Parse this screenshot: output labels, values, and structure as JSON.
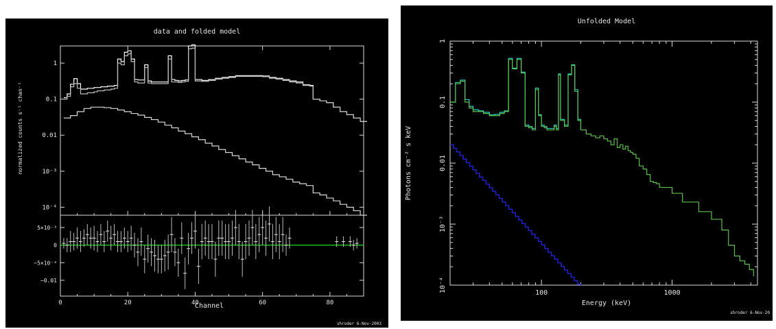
{
  "chart_data": [
    {
      "type": "line",
      "title": "data and folded model",
      "xlabel": "Channel",
      "ylabel": "normalized counts s⁻¹ chan⁻¹",
      "residual_ylabel": "",
      "x_ticks": [
        "0",
        "20",
        "40",
        "60",
        "80"
      ],
      "y_ticks": [
        "1",
        "0.1",
        "0.01",
        "10⁻³",
        "10⁻⁴"
      ],
      "residual_ticks": [
        "5×10⁻³",
        "0",
        "−5×10⁻³",
        "−0.01"
      ],
      "xlim": [
        0,
        90
      ],
      "ylim": [
        6e-05,
        3
      ],
      "y_scale": "log",
      "residual_ylim": [
        -0.0145,
        0.0085
      ],
      "footer": "shroder   6-Nov-2003",
      "colors": {
        "data": "#ffffff",
        "model": "#bdbdbd",
        "component": "#d8d8d8",
        "zero_line": "#18c018"
      },
      "series": [
        {
          "x": [
            1,
            2,
            3,
            4,
            5,
            6,
            7,
            8,
            9,
            10,
            11,
            12,
            13,
            14,
            15,
            16,
            17,
            18,
            19,
            20,
            21,
            22,
            23,
            24,
            25,
            26,
            27,
            28,
            29,
            30,
            31,
            32,
            33,
            34,
            35,
            36,
            37,
            38,
            39,
            40,
            42,
            44,
            46,
            48,
            50,
            52,
            54,
            56,
            58,
            60,
            62,
            64,
            66,
            68,
            70,
            72,
            74,
            75,
            77,
            79,
            81,
            83,
            85,
            87,
            89
          ],
          "values": [
            0.11,
            0.14,
            0.26,
            0.37,
            0.27,
            0.19,
            0.19,
            0.2,
            0.2,
            0.21,
            0.21,
            0.22,
            0.22,
            0.23,
            0.23,
            0.24,
            1.3,
            1.1,
            2.0,
            2.2,
            1.3,
            0.35,
            0.34,
            0.34,
            0.9,
            0.32,
            0.3,
            0.3,
            0.3,
            0.3,
            0.3,
            1.6,
            0.35,
            0.33,
            0.32,
            0.33,
            0.34,
            3.0,
            3.2,
            0.35,
            0.33,
            0.35,
            0.38,
            0.4,
            0.42,
            0.45,
            0.45,
            0.45,
            0.45,
            0.44,
            0.4,
            0.38,
            0.35,
            0.32,
            0.3,
            0.25,
            0.24,
            0.1,
            0.09,
            0.08,
            0.06,
            0.045,
            0.037,
            0.03,
            0.024
          ]
        },
        {
          "x": [
            1,
            2,
            3,
            4,
            5,
            6,
            7,
            8,
            9,
            10,
            11,
            12,
            13,
            14,
            15,
            16,
            17,
            18,
            19,
            20,
            21,
            22,
            23,
            24,
            25,
            26,
            27,
            28,
            29,
            30,
            31,
            32,
            33,
            34,
            35,
            36,
            37,
            38,
            39,
            40,
            42,
            44,
            46,
            48,
            50,
            52,
            54,
            56,
            58,
            60,
            62,
            64,
            66,
            68,
            70,
            72,
            74,
            75,
            77,
            79,
            81,
            83,
            85,
            87,
            89
          ],
          "values": [
            0.1,
            0.12,
            0.22,
            0.27,
            0.2,
            0.14,
            0.14,
            0.15,
            0.15,
            0.16,
            0.17,
            0.17,
            0.18,
            0.18,
            0.19,
            0.2,
            1.0,
            0.9,
            1.6,
            1.8,
            1.1,
            0.3,
            0.28,
            0.28,
            0.75,
            0.28,
            0.27,
            0.27,
            0.27,
            0.27,
            0.27,
            1.3,
            0.3,
            0.3,
            0.29,
            0.3,
            0.31,
            2.5,
            2.6,
            0.32,
            0.31,
            0.33,
            0.36,
            0.38,
            0.4,
            0.43,
            0.43,
            0.43,
            0.43,
            0.42,
            0.38,
            0.36,
            0.33,
            0.3,
            0.28,
            0.24,
            0.23,
            0.1,
            0.09,
            0.08,
            0.06,
            0.045,
            0.037,
            0.03,
            0.024
          ]
        },
        {
          "x": [
            1,
            3,
            5,
            7,
            9,
            11,
            13,
            15,
            17,
            19,
            21,
            23,
            25,
            27,
            29,
            31,
            33,
            35,
            37,
            39,
            41,
            43,
            45,
            47,
            49,
            51,
            53,
            55,
            57,
            59,
            61,
            63,
            65,
            67,
            69,
            71,
            73,
            75,
            77,
            79,
            81,
            83,
            85,
            87,
            89
          ],
          "values": [
            0.03,
            0.035,
            0.045,
            0.055,
            0.06,
            0.06,
            0.058,
            0.055,
            0.05,
            0.045,
            0.04,
            0.036,
            0.031,
            0.027,
            0.023,
            0.019,
            0.016,
            0.013,
            0.011,
            0.009,
            0.0075,
            0.006,
            0.005,
            0.004,
            0.0033,
            0.0027,
            0.0022,
            0.0018,
            0.0015,
            0.0012,
            0.001,
            0.0008,
            0.0007,
            0.0006,
            0.0005,
            0.00045,
            0.0004,
            0.00025,
            0.00022,
            0.00018,
            0.00015,
            0.00012,
            0.0001,
            8e-05,
            6e-05
          ]
        }
      ],
      "residuals": {
        "x": [
          1,
          2,
          3,
          4,
          5,
          6,
          7,
          8,
          9,
          10,
          11,
          12,
          13,
          14,
          15,
          16,
          17,
          18,
          19,
          20,
          21,
          22,
          23,
          24,
          25,
          26,
          27,
          28,
          29,
          30,
          31,
          32,
          33,
          34,
          35,
          36,
          37,
          38,
          39,
          40,
          41,
          42,
          43,
          44,
          45,
          46,
          47,
          48,
          49,
          50,
          51,
          52,
          53,
          54,
          55,
          56,
          57,
          58,
          59,
          60,
          61,
          62,
          63,
          64,
          65,
          66,
          67,
          68,
          82,
          84,
          86,
          87,
          88
        ],
        "values": [
          0.0005,
          0,
          0.001,
          0.001,
          0.002,
          0.001,
          0.002,
          0.003,
          0.002,
          0.002,
          0.001,
          0.003,
          0.001,
          0.004,
          0.002,
          0.003,
          0.001,
          0.001,
          0.002,
          0.001,
          0.002,
          0,
          -0.002,
          0.001,
          -0.004,
          -0.001,
          -0.002,
          -0.003,
          -0.004,
          -0.004,
          -0.003,
          -0.002,
          0.003,
          -0.002,
          -0.005,
          0.002,
          -0.008,
          -0.001,
          0.002,
          0.004,
          -0.006,
          0.001,
          0.002,
          0.001,
          0.001,
          -0.004,
          0.002,
          0.002,
          0.001,
          0.001,
          0.002,
          0.005,
          0.001,
          -0.004,
          0.001,
          0.002,
          0.005,
          0.001,
          0.003,
          0.005,
          0.002,
          0.006,
          0.001,
          0.003,
          0.001,
          0.003,
          0,
          0.002,
          0.001,
          0.001,
          0.001,
          0,
          0.0005
        ],
        "errors": [
          0.0015,
          0.002,
          0.003,
          0.0025,
          0.003,
          0.003,
          0.0025,
          0.003,
          0.003,
          0.0035,
          0.003,
          0.003,
          0.003,
          0.003,
          0.0035,
          0.003,
          0.003,
          0.003,
          0.003,
          0.003,
          0.0035,
          0.0035,
          0.004,
          0.004,
          0.004,
          0.004,
          0.004,
          0.0045,
          0.004,
          0.004,
          0.0045,
          0.005,
          0.005,
          0.004,
          0.004,
          0.0045,
          0.0045,
          0.0045,
          0.0045,
          0.005,
          0.005,
          0.005,
          0.005,
          0.005,
          0.005,
          0.005,
          0.005,
          0.005,
          0.005,
          0.005,
          0.005,
          0.005,
          0.005,
          0.005,
          0.005,
          0.005,
          0.005,
          0.005,
          0.005,
          0.005,
          0.005,
          0.005,
          0.005,
          0.005,
          0.005,
          0.005,
          0.003,
          0.003,
          0.0015,
          0.0015,
          0.0015,
          0.0015,
          0.0015
        ]
      }
    },
    {
      "type": "line",
      "title": "Unfolded Model",
      "xlabel": "Energy (keV)",
      "ylabel": "Photons cm⁻² s keV",
      "x_ticks": [
        "100",
        "1000"
      ],
      "y_ticks": [
        "1",
        "0.1",
        "0.01",
        "10⁻³",
        "10⁻⁴"
      ],
      "x_scale": "log",
      "y_scale": "log",
      "xlim": [
        20,
        4500
      ],
      "ylim": [
        0.0001,
        1
      ],
      "footer": "shroder   6-Nov-20",
      "colors": {
        "total": "#1fd5c2",
        "component_a": "#5cc04a",
        "component_b": "#2020c8"
      },
      "series": [
        {
          "x": [
            20,
            22,
            24,
            26,
            28,
            30,
            33,
            36,
            40,
            44,
            48,
            52,
            56,
            60,
            65,
            70,
            75,
            80,
            85,
            90,
            95,
            100,
            105,
            110,
            115,
            120,
            125,
            130,
            135,
            140,
            150,
            160,
            170,
            180,
            190,
            200,
            220,
            240,
            260,
            280,
            300,
            320,
            340,
            360,
            380,
            400,
            420,
            440,
            460,
            480,
            500,
            530,
            560,
            600,
            640,
            680,
            720,
            760,
            800,
            1000,
            1200,
            1600,
            2000,
            2400,
            2700,
            3000,
            3300,
            3600,
            3900,
            4200
          ],
          "values": [
            0.1,
            0.2,
            0.22,
            0.1,
            0.08,
            0.07,
            0.07,
            0.065,
            0.06,
            0.06,
            0.065,
            0.07,
            0.5,
            0.35,
            0.5,
            0.3,
            0.04,
            0.038,
            0.035,
            0.16,
            0.06,
            0.04,
            0.038,
            0.035,
            0.035,
            0.035,
            0.04,
            0.035,
            0.28,
            0.05,
            0.04,
            0.28,
            0.4,
            0.15,
            0.05,
            0.035,
            0.03,
            0.028,
            0.026,
            0.028,
            0.025,
            0.023,
            0.02,
            0.025,
            0.018,
            0.02,
            0.017,
            0.019,
            0.016,
            0.015,
            0.014,
            0.012,
            0.009,
            0.008,
            0.0065,
            0.005,
            0.0048,
            0.0046,
            0.004,
            0.0032,
            0.0023,
            0.0016,
            0.0012,
            0.0008,
            0.00045,
            0.0003,
            0.00025,
            0.00022,
            0.00018,
            0.00014
          ]
        },
        {
          "x": [
            20,
            22,
            24,
            26,
            28,
            30,
            33,
            36,
            40,
            44,
            48,
            52,
            56,
            60,
            65,
            70,
            75,
            80,
            85,
            90,
            95,
            100,
            105,
            110,
            115,
            120,
            125,
            130,
            135,
            140,
            150,
            160,
            170,
            180,
            190,
            200
          ],
          "values": [
            0.1,
            0.21,
            0.23,
            0.11,
            0.085,
            0.075,
            0.072,
            0.068,
            0.062,
            0.063,
            0.068,
            0.072,
            0.52,
            0.36,
            0.52,
            0.31,
            0.042,
            0.04,
            0.037,
            0.17,
            0.062,
            0.042,
            0.04,
            0.037,
            0.037,
            0.037,
            0.042,
            0.037,
            0.29,
            0.052,
            0.042,
            0.29,
            0.41,
            0.16,
            0.052,
            0.036
          ]
        },
        {
          "x": [
            20,
            200
          ],
          "values": [
            0.02,
            9e-05
          ]
        }
      ]
    }
  ]
}
